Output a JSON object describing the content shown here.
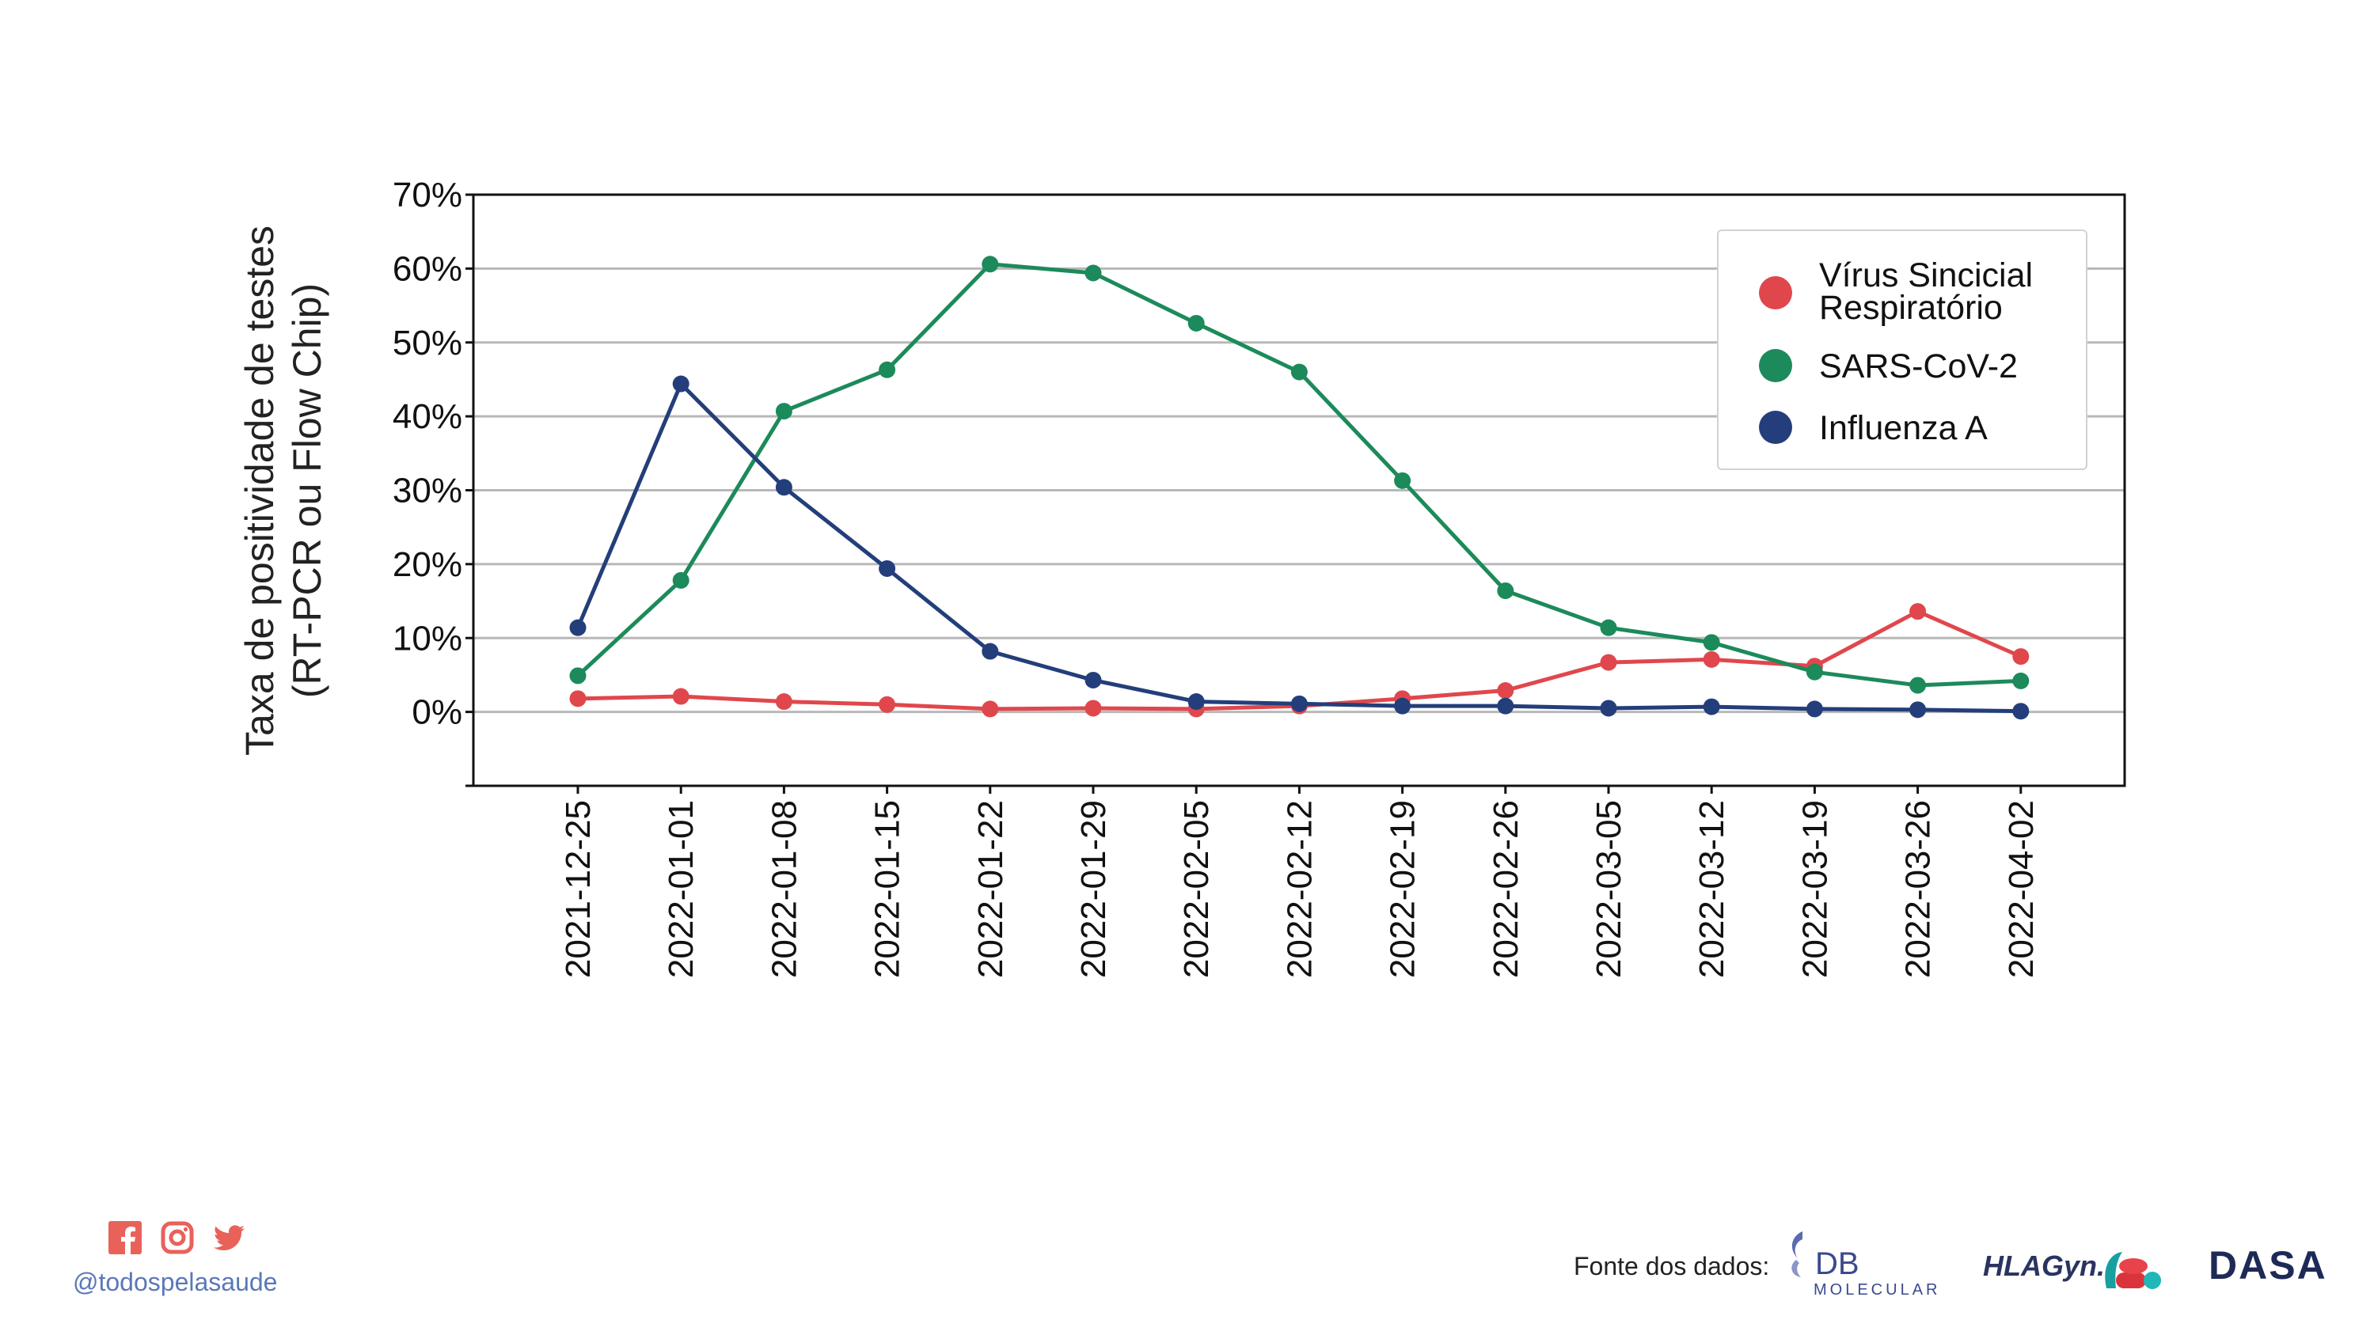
{
  "chart_data": {
    "type": "line",
    "categories": [
      "2021-12-25",
      "2022-01-01",
      "2022-01-08",
      "2022-01-15",
      "2022-01-22",
      "2022-01-29",
      "2022-02-05",
      "2022-02-12",
      "2022-02-19",
      "2022-02-26",
      "2022-03-05",
      "2022-03-12",
      "2022-03-19",
      "2022-03-26",
      "2022-04-02"
    ],
    "series": [
      {
        "name": "Vírus Sincicial Respiratório",
        "legend_lines": [
          "Vírus Sincicial",
          "Respiratório"
        ],
        "color": "#e0474c",
        "values": [
          1.8,
          2.1,
          1.4,
          1.0,
          0.4,
          0.5,
          0.4,
          0.8,
          1.8,
          2.9,
          6.7,
          7.1,
          6.2,
          13.6,
          7.5
        ]
      },
      {
        "name": "SARS-CoV-2",
        "legend_lines": [
          "SARS-CoV-2"
        ],
        "color": "#1c8a5a",
        "values": [
          4.9,
          17.8,
          40.7,
          46.3,
          60.6,
          59.4,
          52.6,
          46.0,
          31.3,
          16.4,
          11.4,
          9.4,
          5.4,
          3.6,
          4.2
        ]
      },
      {
        "name": "Influenza A",
        "legend_lines": [
          "Influenza A"
        ],
        "color": "#233e7a",
        "values": [
          11.4,
          44.4,
          30.4,
          19.4,
          8.2,
          4.3,
          1.4,
          1.1,
          0.8,
          0.8,
          0.5,
          0.7,
          0.4,
          0.3,
          0.1
        ]
      }
    ],
    "y_ticks": [
      "70%",
      "60%",
      "50%",
      "40%",
      "30%",
      "20%",
      "10%",
      "0%"
    ],
    "y_tick_values": [
      70,
      60,
      50,
      40,
      30,
      20,
      10,
      0
    ],
    "ylim": [
      -10,
      70
    ],
    "ylabel_lines": [
      "Taxa de positividade de testes",
      "(RT-PCR ou Flow Chip)"
    ],
    "xlabel": "",
    "grid": "horizontal",
    "legend_position": "top-right"
  },
  "footer": {
    "handle": "@todospelasaude",
    "social_icons": [
      "facebook-icon",
      "instagram-icon",
      "twitter-icon"
    ],
    "social_color": "#e8625a",
    "source_label": "Fonte dos dados:",
    "logos": {
      "db": {
        "main": "DB",
        "sub": "MOLECULAR"
      },
      "hlagyn": "HLAGyn.",
      "dasa": "DASA"
    }
  }
}
